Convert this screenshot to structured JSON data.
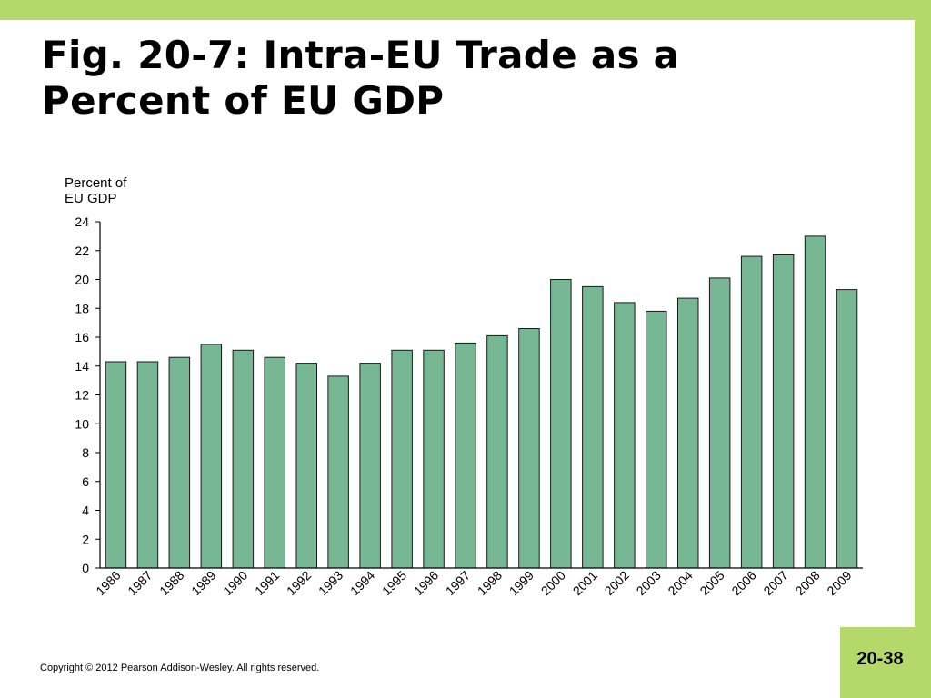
{
  "slide": {
    "title_line1": "Fig. 20-7: Intra-EU Trade as a",
    "title_line2": "Percent of EU GDP",
    "copyright": "Copyright © 2012 Pearson Addison-Wesley. All rights reserved.",
    "slide_number": "20-38",
    "accent_color": "#b5d86a"
  },
  "chart_data": {
    "type": "bar",
    "ylabel_line1": "Percent of",
    "ylabel_line2": "EU GDP",
    "xlabel": "",
    "ylim": [
      0,
      24
    ],
    "yticks": [
      0,
      2,
      4,
      6,
      8,
      10,
      12,
      14,
      16,
      18,
      20,
      22,
      24
    ],
    "categories": [
      "1986",
      "1987",
      "1988",
      "1989",
      "1990",
      "1991",
      "1992",
      "1993",
      "1994",
      "1995",
      "1996",
      "1997",
      "1998",
      "1999",
      "2000",
      "2001",
      "2002",
      "2003",
      "2004",
      "2005",
      "2006",
      "2007",
      "2008",
      "2009"
    ],
    "values": [
      14.3,
      14.3,
      14.6,
      15.5,
      15.1,
      14.6,
      14.2,
      13.3,
      14.2,
      15.1,
      15.1,
      15.6,
      16.1,
      16.6,
      20.0,
      19.5,
      18.4,
      17.8,
      18.7,
      20.1,
      21.6,
      21.7,
      23.0,
      19.3
    ],
    "bar_color": "#77b793",
    "grid": false
  }
}
